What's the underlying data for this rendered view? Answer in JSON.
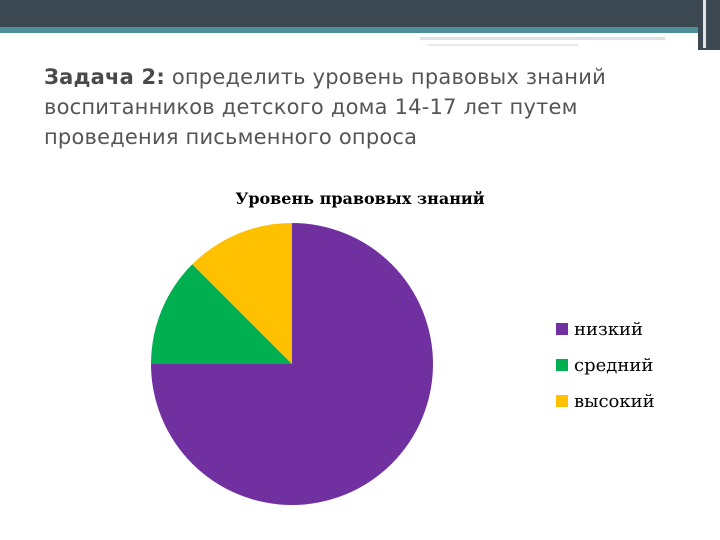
{
  "slide": {
    "title_label": "Задача 2:",
    "title_text": " определить уровень правовых знаний воспитанников детского дома 14-17 лет путем проведения письменного опроса"
  },
  "chart_data": {
    "type": "pie",
    "title": "Уровень правовых знаний",
    "categories": [
      "низкий",
      "средний",
      "высокий"
    ],
    "values": [
      75,
      12.5,
      12.5
    ],
    "colors": [
      "#7030a0",
      "#00b050",
      "#ffc000"
    ],
    "legend_position": "right"
  }
}
